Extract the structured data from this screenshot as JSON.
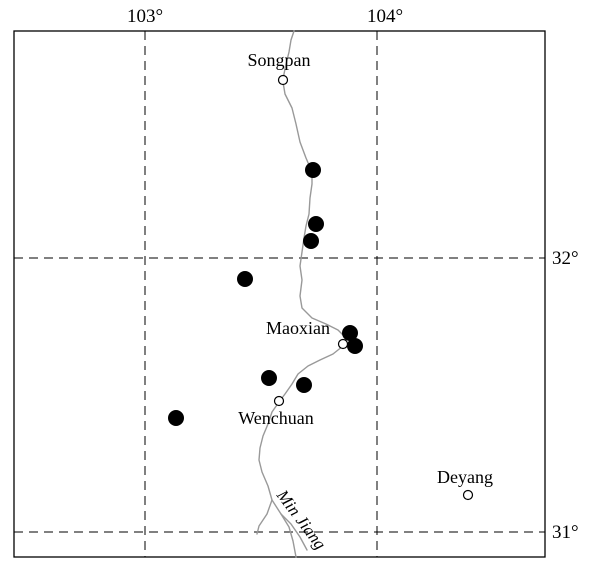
{
  "map": {
    "longitude_labels": [
      "103°",
      "104°"
    ],
    "latitude_labels": [
      "32°",
      "31°"
    ],
    "cities": [
      {
        "name": "Songpan"
      },
      {
        "name": "Maoxian"
      },
      {
        "name": "Wenchuan"
      },
      {
        "name": "Deyang"
      }
    ],
    "river": {
      "name": "Min Jiang",
      "color": "#999999"
    },
    "marker_count": 10,
    "marker_color": "#000000",
    "grid_line_style": "dashed"
  }
}
